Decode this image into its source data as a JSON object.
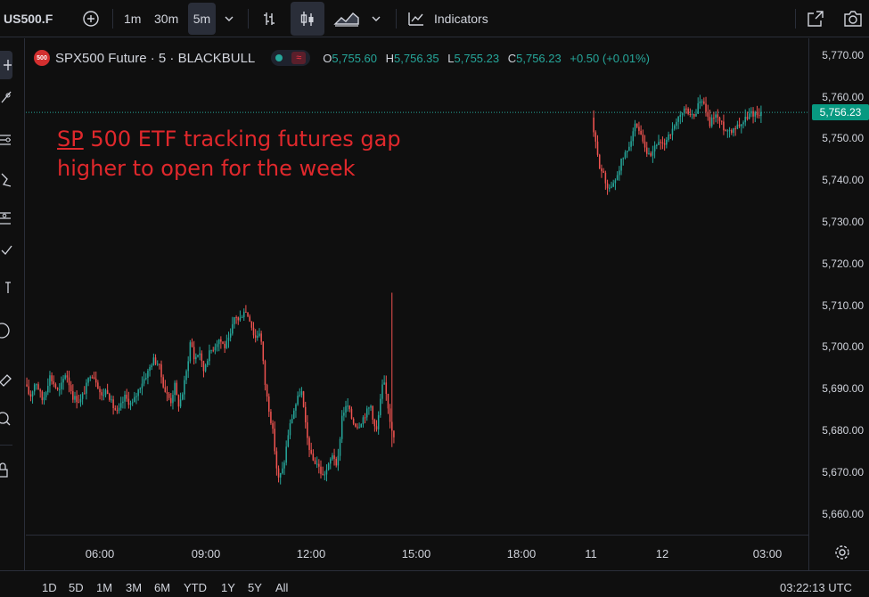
{
  "toolbar": {
    "symbol": "US500.F",
    "timeframes": [
      "1m",
      "30m",
      "5m"
    ],
    "active_timeframe": "5m",
    "indicators_label": "Indicators",
    "icons": [
      "add-symbol-icon",
      "chevron-down-icon",
      "bars-icon",
      "candles-icon",
      "area-icon",
      "chevron-down-icon",
      "indicators-icon",
      "fullscreen-icon",
      "camera-icon"
    ]
  },
  "legend": {
    "logo_text": "500",
    "title": "SPX500 Future · 5 · BLACKBULL",
    "o_key": "O",
    "o_val": "5,755.60",
    "h_key": "H",
    "h_val": "5,756.35",
    "l_key": "L",
    "l_val": "5,755.23",
    "c_key": "C",
    "c_val": "5,756.23",
    "change": "+0.50 (+0.01%)",
    "colors": {
      "up": "#26a69a",
      "down": "#ef5350"
    }
  },
  "annotation": {
    "line1_underlined": "SP",
    "line1_rest": " 500 ETF tracking futures gap",
    "line2": "higher to open for the week",
    "color": "#e0282c"
  },
  "price_axis": {
    "labels": [
      "5,770.00",
      "5,760.00",
      "5,750.00",
      "5,740.00",
      "5,730.00",
      "5,720.00",
      "5,710.00",
      "5,700.00",
      "5,690.00",
      "5,680.00",
      "5,670.00",
      "5,660.00"
    ],
    "last_price": "5,756.23",
    "last_price_color": "#089981"
  },
  "time_axis": {
    "labels": [
      "06:00",
      "09:00",
      "12:00",
      "15:00",
      "18:00",
      "11",
      "12",
      "03:00"
    ]
  },
  "bottom": {
    "ranges": [
      "1D",
      "5D",
      "1M",
      "3M",
      "6M",
      "YTD",
      "1Y",
      "5Y",
      "All"
    ],
    "clock": "03:22:13 UTC"
  },
  "chart_data": {
    "type": "candlestick",
    "ylim": [
      5655,
      5774
    ],
    "segments": [
      {
        "anchors": [
          [
            0,
            5691
          ],
          [
            6,
            5688
          ],
          [
            12,
            5692
          ],
          [
            20,
            5687
          ],
          [
            28,
            5693
          ],
          [
            38,
            5689
          ],
          [
            46,
            5694
          ],
          [
            54,
            5688
          ],
          [
            62,
            5687
          ],
          [
            68,
            5690
          ],
          [
            74,
            5694
          ],
          [
            80,
            5692
          ],
          [
            86,
            5688
          ],
          [
            92,
            5690
          ],
          [
            98,
            5686
          ],
          [
            104,
            5684
          ],
          [
            112,
            5688
          ],
          [
            120,
            5686
          ],
          [
            130,
            5691
          ],
          [
            138,
            5694
          ],
          [
            144,
            5697
          ],
          [
            150,
            5696
          ],
          [
            154,
            5692
          ],
          [
            158,
            5689
          ],
          [
            164,
            5687
          ],
          [
            168,
            5691
          ],
          [
            172,
            5686
          ],
          [
            176,
            5688
          ],
          [
            182,
            5695
          ],
          [
            186,
            5702
          ],
          [
            190,
            5697
          ],
          [
            196,
            5699
          ],
          [
            200,
            5694
          ],
          [
            204,
            5697
          ],
          [
            208,
            5699
          ],
          [
            212,
            5700
          ],
          [
            218,
            5702
          ],
          [
            224,
            5700
          ],
          [
            230,
            5702
          ],
          [
            236,
            5708
          ],
          [
            240,
            5706
          ],
          [
            246,
            5709
          ],
          [
            252,
            5707
          ],
          [
            258,
            5702
          ],
          [
            264,
            5704
          ],
          [
            270,
            5690
          ],
          [
            278,
            5680
          ],
          [
            284,
            5668
          ],
          [
            290,
            5671
          ],
          [
            296,
            5680
          ],
          [
            302,
            5685
          ],
          [
            310,
            5690
          ],
          [
            316,
            5679
          ],
          [
            322,
            5673
          ],
          [
            328,
            5672
          ],
          [
            334,
            5669
          ],
          [
            340,
            5671
          ],
          [
            346,
            5675
          ],
          [
            350,
            5670
          ],
          [
            356,
            5684
          ],
          [
            362,
            5686
          ],
          [
            368,
            5682
          ],
          [
            374,
            5681
          ],
          [
            382,
            5684
          ],
          [
            388,
            5686
          ],
          [
            394,
            5679
          ],
          [
            402,
            5692
          ],
          [
            406,
            5688
          ],
          [
            410,
            5682
          ],
          [
            414,
            5679
          ]
        ],
        "count": 192,
        "seed": 17,
        "spikes": [
          [
            190,
            5713,
            5676
          ]
        ]
      },
      {
        "anchors": [
          [
            0,
            5755
          ],
          [
            4,
            5749
          ],
          [
            8,
            5744
          ],
          [
            12,
            5742
          ],
          [
            16,
            5739
          ],
          [
            22,
            5738
          ],
          [
            28,
            5741
          ],
          [
            34,
            5745
          ],
          [
            40,
            5747
          ],
          [
            48,
            5753
          ],
          [
            54,
            5751
          ],
          [
            60,
            5747
          ],
          [
            66,
            5745
          ],
          [
            72,
            5749
          ],
          [
            80,
            5748
          ],
          [
            86,
            5751
          ],
          [
            92,
            5752
          ],
          [
            98,
            5755
          ],
          [
            104,
            5757
          ],
          [
            110,
            5756
          ],
          [
            116,
            5755
          ],
          [
            120,
            5759
          ],
          [
            126,
            5758
          ],
          [
            132,
            5753
          ],
          [
            138,
            5756
          ],
          [
            144,
            5754
          ],
          [
            150,
            5752
          ],
          [
            156,
            5752
          ],
          [
            162,
            5753
          ],
          [
            170,
            5754
          ],
          [
            178,
            5756
          ],
          [
            184,
            5756
          ],
          [
            190,
            5756
          ]
        ],
        "count": 86,
        "seed": 29,
        "spikes": []
      }
    ]
  }
}
